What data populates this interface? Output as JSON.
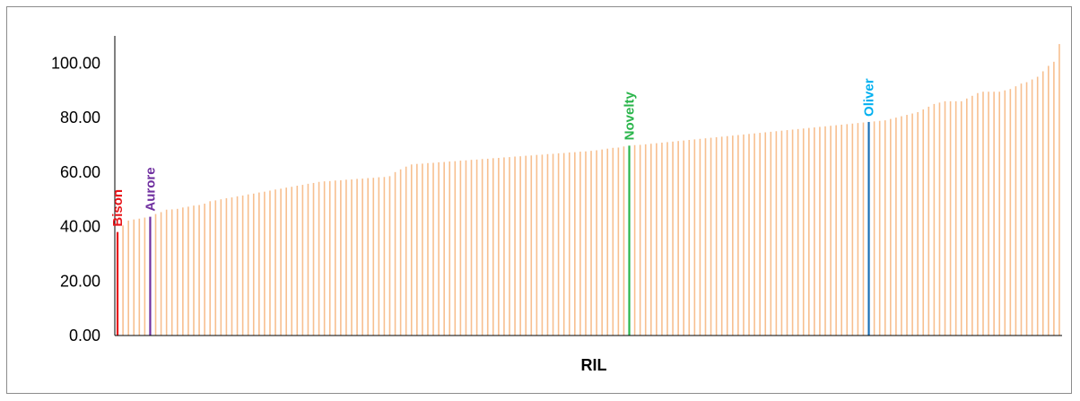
{
  "chart_data": {
    "type": "bar",
    "xlabel": "RIL",
    "ylabel": "",
    "title": "",
    "ylim": [
      0,
      110
    ],
    "yticks": [
      "0.00",
      "20.00",
      "40.00",
      "60.00",
      "80.00",
      "100.00"
    ],
    "grid": false,
    "default_color": "#f7bf8f",
    "values": [
      38.0,
      40.4,
      42.2,
      42.6,
      42.9,
      43.3,
      43.6,
      44.6,
      45.3,
      46.2,
      46.3,
      46.5,
      47.0,
      47.3,
      47.7,
      47.9,
      48.4,
      49.3,
      49.6,
      50.0,
      50.4,
      50.7,
      51.1,
      51.4,
      51.8,
      52.1,
      52.5,
      52.8,
      53.2,
      53.6,
      53.9,
      54.3,
      54.6,
      55.0,
      55.3,
      55.7,
      56.0,
      56.4,
      56.6,
      56.7,
      56.9,
      57.0,
      57.2,
      57.3,
      57.5,
      57.6,
      57.8,
      57.9,
      58.1,
      58.2,
      58.5,
      60.0,
      61.0,
      62.0,
      62.8,
      63.0,
      63.1,
      63.3,
      63.4,
      63.6,
      63.7,
      63.9,
      64.0,
      64.2,
      64.3,
      64.5,
      64.6,
      64.8,
      64.9,
      65.1,
      65.2,
      65.4,
      65.5,
      65.7,
      65.8,
      66.0,
      66.1,
      66.3,
      66.4,
      66.6,
      66.7,
      66.9,
      67.0,
      67.2,
      67.3,
      67.5,
      67.6,
      67.8,
      68.0,
      68.3,
      68.6,
      68.9,
      69.0,
      69.4,
      69.7,
      69.9,
      70.0,
      70.2,
      70.4,
      70.6,
      70.8,
      71.0,
      71.2,
      71.4,
      71.6,
      71.8,
      72.0,
      72.2,
      72.4,
      72.6,
      72.8,
      73.0,
      73.2,
      73.4,
      73.6,
      73.8,
      74.0,
      74.2,
      74.4,
      74.6,
      74.8,
      75.0,
      75.2,
      75.4,
      75.6,
      75.8,
      76.0,
      76.2,
      76.4,
      76.6,
      76.8,
      77.0,
      77.2,
      77.4,
      77.6,
      77.8,
      78.0,
      78.2,
      78.4,
      78.6,
      78.8,
      79.0,
      79.5,
      80.0,
      80.5,
      81.0,
      81.5,
      82.0,
      83.0,
      84.0,
      85.0,
      85.5,
      86.0,
      86.0,
      86.0,
      86.0,
      87.0,
      88.0,
      89.0,
      89.5,
      89.5,
      89.5,
      89.5,
      90.0,
      90.5,
      91.5,
      92.5,
      93.0,
      94.0,
      95.0,
      97.0,
      99.0,
      100.5,
      107.0
    ],
    "highlights": [
      {
        "index": 0,
        "label": "Bison",
        "color": "#e8161b"
      },
      {
        "index": 6,
        "label": "Aurore",
        "color": "#7030a0"
      },
      {
        "index": 94,
        "label": "Novelty",
        "color": "#2ab54b"
      },
      {
        "index": 138,
        "label": "Oliver",
        "color": "#1b6fb5"
      }
    ],
    "highlight_label_colors": {
      "Bison": "#e8161b",
      "Aurore": "#7030a0",
      "Novelty": "#2ab54b",
      "Oliver": "#00b0f0"
    }
  }
}
